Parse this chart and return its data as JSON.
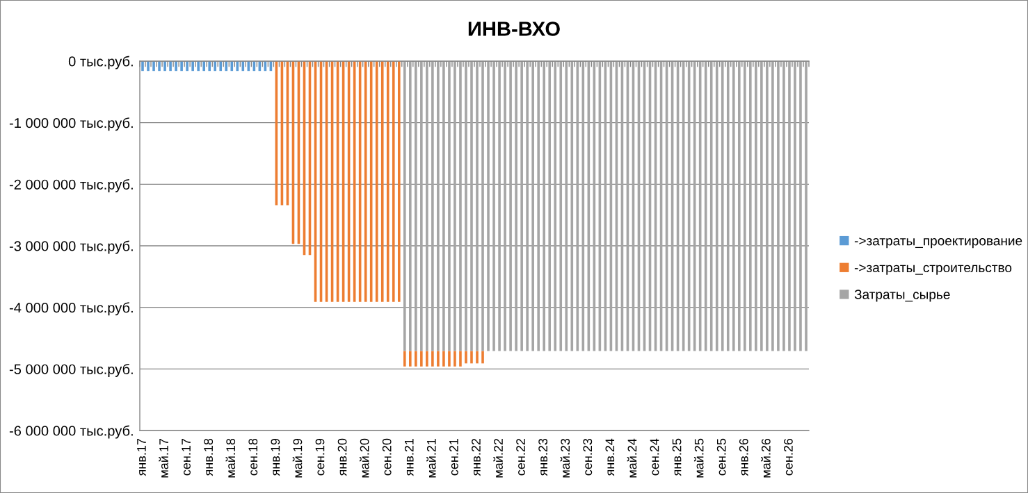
{
  "chart_data": {
    "type": "bar",
    "title": "ИНВ-ВХО",
    "categories": [
      "янв.17",
      null,
      null,
      null,
      "май.17",
      null,
      null,
      null,
      "сен.17",
      null,
      null,
      null,
      "янв.18",
      null,
      null,
      null,
      "май.18",
      null,
      null,
      null,
      "сен.18",
      null,
      null,
      null,
      "янв.19",
      null,
      null,
      null,
      "май.19",
      null,
      null,
      null,
      "сен.19",
      null,
      null,
      null,
      "янв.20",
      null,
      null,
      null,
      "май.20",
      null,
      null,
      null,
      "сен.20",
      null,
      null,
      null,
      "янв.21",
      null,
      null,
      null,
      "май.21",
      null,
      null,
      null,
      "сен.21",
      null,
      null,
      null,
      "янв.22",
      null,
      null,
      null,
      "май.22",
      null,
      null,
      null,
      "сен.22",
      null,
      null,
      null,
      "янв.23",
      null,
      null,
      null,
      "май.23",
      null,
      null,
      null,
      "сен.23",
      null,
      null,
      null,
      "янв.24",
      null,
      null,
      null,
      "май.24",
      null,
      null,
      null,
      "сен.24",
      null,
      null,
      null,
      "янв.25",
      null,
      null,
      null,
      "май.25",
      null,
      null,
      null,
      "сен.25",
      null,
      null,
      null,
      "янв.26",
      null,
      null,
      null,
      "май.26",
      null,
      null,
      null,
      "сен.26",
      null,
      null,
      null
    ],
    "stacked": true,
    "series": [
      {
        "name": "Затраты_сырье",
        "color": "#a5a5a5",
        "values": [
          null,
          null,
          null,
          null,
          null,
          null,
          null,
          null,
          null,
          null,
          null,
          null,
          null,
          null,
          null,
          null,
          null,
          null,
          null,
          null,
          null,
          null,
          null,
          null,
          null,
          null,
          null,
          null,
          null,
          null,
          null,
          null,
          null,
          null,
          null,
          null,
          null,
          null,
          null,
          null,
          null,
          null,
          null,
          null,
          null,
          null,
          null,
          -4710000,
          -4710000,
          -4710000,
          -4710000,
          -4710000,
          -4710000,
          -4710000,
          -4710000,
          -4710000,
          -4710000,
          -4710000,
          -4710000,
          -4710000,
          -4710000,
          -4710000,
          -4710000,
          -4710000,
          -4710000,
          -4710000,
          -4710000,
          -4710000,
          -4710000,
          -4710000,
          -4710000,
          -4710000,
          -4710000,
          -4710000,
          -4710000,
          -4710000,
          -4710000,
          -4710000,
          -4710000,
          -4710000,
          -4710000,
          -4710000,
          -4710000,
          -4710000,
          -4710000,
          -4710000,
          -4710000,
          -4710000,
          -4710000,
          -4710000,
          -4710000,
          -4710000,
          -4710000,
          -4710000,
          -4710000,
          -4710000,
          -4710000,
          -4710000,
          -4710000,
          -4710000,
          -4710000,
          -4710000,
          -4710000,
          -4710000,
          -4710000,
          -4710000,
          -4710000,
          -4710000,
          -4710000,
          -4710000,
          -4710000,
          -4710000,
          -4710000,
          -4710000,
          -4710000,
          -4710000,
          -4710000,
          -4710000,
          -4710000,
          -4710000
        ]
      },
      {
        "name": "->затраты_строительство",
        "color": "#ed7d31",
        "values": [
          null,
          null,
          null,
          null,
          null,
          null,
          null,
          null,
          null,
          null,
          null,
          null,
          null,
          null,
          null,
          null,
          null,
          null,
          null,
          null,
          null,
          null,
          null,
          null,
          -2340000,
          -2340000,
          -2340000,
          -2970000,
          -2970000,
          -3150000,
          -3150000,
          -3910000,
          -3910000,
          -3910000,
          -3910000,
          -3910000,
          -3910000,
          -3910000,
          -3910000,
          -3910000,
          -3910000,
          -3910000,
          -3910000,
          -3910000,
          -3910000,
          -3910000,
          -3910000,
          -250000,
          -250000,
          -250000,
          -250000,
          -250000,
          -250000,
          -250000,
          -250000,
          -250000,
          -250000,
          -250000,
          -200000,
          -200000,
          -200000,
          -200000,
          null,
          null,
          null,
          null,
          null,
          null,
          null,
          null,
          null,
          null,
          null,
          null,
          null,
          null,
          null,
          null,
          null,
          null,
          null,
          null,
          null,
          null,
          null,
          null,
          null,
          null,
          null,
          null,
          null,
          null,
          null,
          null,
          null,
          null,
          null,
          null,
          null,
          null,
          null,
          null,
          null,
          null,
          null,
          null,
          null,
          null,
          null,
          null,
          null,
          null,
          null,
          null,
          null,
          null,
          null,
          null,
          null,
          null
        ]
      },
      {
        "name": "->затраты_проектирование",
        "color": "#5b9bd5",
        "values": [
          -160000,
          -160000,
          -160000,
          -160000,
          -160000,
          -160000,
          -160000,
          -160000,
          -160000,
          -160000,
          -160000,
          -160000,
          -160000,
          -160000,
          -160000,
          -160000,
          -160000,
          -160000,
          -160000,
          -160000,
          -160000,
          -160000,
          -160000,
          -160000,
          null,
          null,
          null,
          null,
          null,
          null,
          null,
          null,
          null,
          null,
          null,
          null,
          null,
          null,
          null,
          null,
          null,
          null,
          null,
          null,
          null,
          null,
          null,
          null,
          null,
          null,
          null,
          null,
          null,
          null,
          null,
          null,
          null,
          null,
          null,
          null,
          null,
          null,
          null,
          null,
          null,
          null,
          null,
          null,
          null,
          null,
          null,
          null,
          null,
          null,
          null,
          null,
          null,
          null,
          null,
          null,
          null,
          null,
          null,
          null,
          null,
          null,
          null,
          null,
          null,
          null,
          null,
          null,
          null,
          null,
          null,
          null,
          null,
          null,
          null,
          null,
          null,
          null,
          null,
          null,
          null,
          null,
          null,
          null,
          null,
          null,
          null,
          null,
          null,
          null,
          null,
          null,
          null,
          null,
          null,
          null
        ]
      }
    ],
    "ylim": [
      -6000000,
      0
    ],
    "yticks": [
      {
        "value": -6000000,
        "label": "-6 000 000 тыс.руб."
      },
      {
        "value": -5000000,
        "label": "-5 000 000 тыс.руб."
      },
      {
        "value": -4000000,
        "label": "-4 000 000 тыс.руб."
      },
      {
        "value": -3000000,
        "label": "-3 000 000 тыс.руб."
      },
      {
        "value": -2000000,
        "label": "-2 000 000 тыс.руб."
      },
      {
        "value": -1000000,
        "label": "-1 000 000 тыс.руб."
      },
      {
        "value": 0,
        "label": "0 тыс.руб."
      }
    ],
    "grid": "y",
    "legend": "right"
  }
}
